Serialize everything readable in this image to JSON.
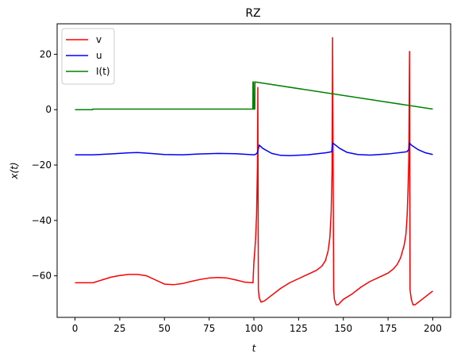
{
  "chart_data": {
    "type": "line",
    "title": "RZ",
    "xlabel": "t",
    "ylabel": "x(t)",
    "xlim": [
      -10,
      210
    ],
    "ylim": [
      -75,
      31
    ],
    "xticks": [
      0,
      25,
      50,
      75,
      100,
      125,
      150,
      175,
      200
    ],
    "yticks": [
      -60,
      -40,
      -20,
      0,
      20
    ],
    "legend_position": "top-left",
    "grid": false,
    "series": [
      {
        "name": "v",
        "color": "#ff0000",
        "x": [
          0,
          10,
          15,
          20,
          25,
          30,
          35,
          40,
          45,
          50,
          55,
          60,
          65,
          70,
          75,
          80,
          85,
          90,
          95,
          99.5,
          100,
          100.5,
          101,
          101.5,
          102,
          102.2,
          102.5,
          103,
          104,
          106,
          110,
          115,
          120,
          125,
          130,
          135,
          138,
          140,
          141.5,
          142.5,
          143.2,
          143.7,
          144,
          144.3,
          144.6,
          145,
          146,
          147,
          150,
          155,
          160,
          165,
          170,
          175,
          178,
          180,
          182,
          184,
          185,
          185.7,
          186.2,
          186.6,
          187,
          187.3,
          188,
          189,
          190,
          193,
          196,
          200
        ],
        "values": [
          -62.5,
          -62.5,
          -61.5,
          -60.5,
          -59.9,
          -59.5,
          -59.5,
          -60.0,
          -61.5,
          -63.0,
          -63.2,
          -62.8,
          -62.0,
          -61.3,
          -60.8,
          -60.6,
          -60.8,
          -61.5,
          -62.3,
          -62.5,
          -55.0,
          -51.0,
          -46.0,
          -38.0,
          -20.0,
          8.0,
          -65.0,
          -68.0,
          -69.5,
          -69.0,
          -67.0,
          -64.5,
          -62.5,
          -61.0,
          -59.5,
          -58.0,
          -56.5,
          -54.5,
          -51.0,
          -46.0,
          -37.0,
          -22.0,
          26.0,
          -22.0,
          -65.0,
          -68.5,
          -70.5,
          -70.5,
          -68.5,
          -66.5,
          -64.0,
          -62.0,
          -60.5,
          -59.0,
          -57.5,
          -56.0,
          -53.5,
          -49.0,
          -45.0,
          -38.0,
          -28.0,
          -18.0,
          21.0,
          -65.0,
          -68.5,
          -70.5,
          -70.5,
          -69.0,
          -67.5,
          -65.5
        ]
      },
      {
        "name": "u",
        "color": "#0000ff",
        "x": [
          0,
          10,
          20,
          30,
          35,
          40,
          50,
          60,
          70,
          80,
          90,
          100,
          101,
          102,
          103,
          105,
          110,
          115,
          120,
          130,
          140,
          143.5,
          144,
          145,
          148,
          152,
          158,
          165,
          175,
          185.5,
          186.5,
          187,
          188,
          192,
          196,
          200
        ],
        "values": [
          -16.3,
          -16.3,
          -16.0,
          -15.6,
          -15.5,
          -15.7,
          -16.2,
          -16.3,
          -16.0,
          -15.8,
          -15.9,
          -16.3,
          -16.1,
          -15.5,
          -12.8,
          -14.0,
          -15.8,
          -16.5,
          -16.6,
          -16.3,
          -15.6,
          -15.2,
          -12.0,
          -12.5,
          -14.0,
          -15.4,
          -16.2,
          -16.4,
          -16.0,
          -15.2,
          -14.5,
          -12.0,
          -12.8,
          -14.5,
          -15.6,
          -16.2
        ]
      },
      {
        "name": "I(t)",
        "color": "#008000",
        "x": [
          0,
          9.9,
          10,
          99.4,
          99.5,
          99.8,
          99.9,
          100.5,
          100.6,
          200
        ],
        "values": [
          0,
          0,
          0.2,
          0.2,
          10,
          10,
          0.2,
          0.2,
          10,
          0.2
        ]
      }
    ]
  }
}
